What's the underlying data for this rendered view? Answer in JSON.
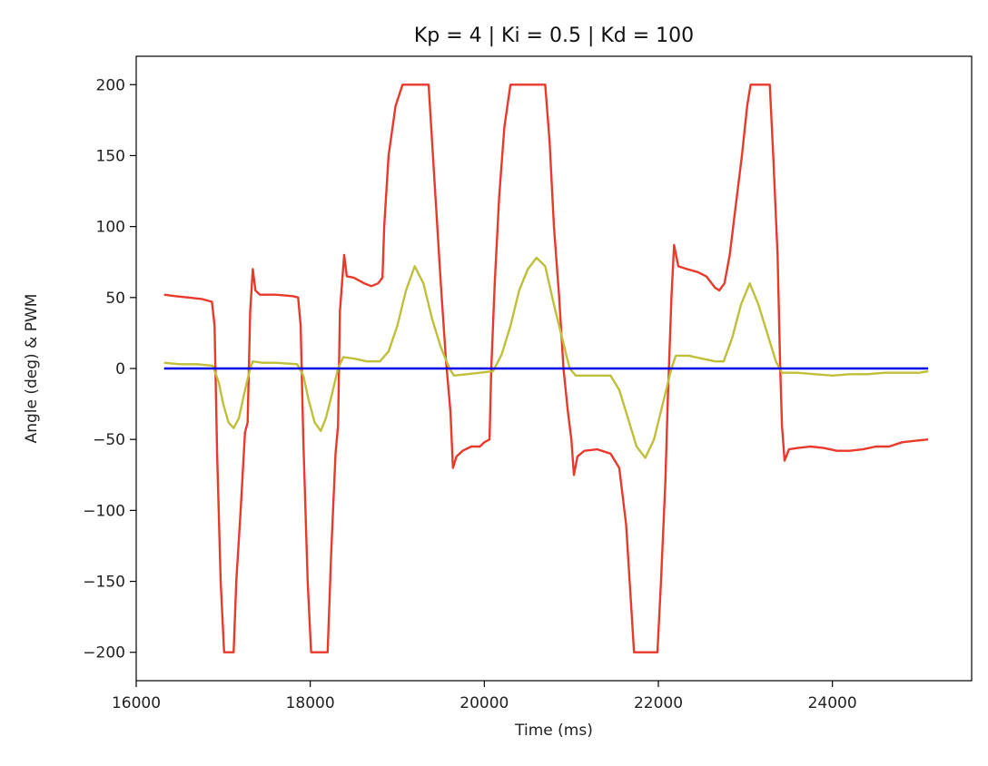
{
  "chart_data": {
    "type": "line",
    "title": "Kp = 4 | Ki = 0.5 | Kd = 100",
    "xlabel": "Time (ms)",
    "ylabel": "Angle (deg) & PWM",
    "xlim": [
      16000,
      25600
    ],
    "ylim": [
      -220,
      220
    ],
    "xticks": [
      16000,
      18000,
      20000,
      22000,
      24000
    ],
    "yticks": [
      -200,
      -150,
      -100,
      -50,
      0,
      50,
      100,
      150,
      200
    ],
    "xtick_labels": [
      "16000",
      "18000",
      "20000",
      "22000",
      "24000"
    ],
    "ytick_labels": [
      "−200",
      "−150",
      "−100",
      "−50",
      "0",
      "50",
      "100",
      "150",
      "200"
    ],
    "grid": false,
    "series": [
      {
        "color": "#e8392b",
        "points": [
          [
            16320,
            52
          ],
          [
            16450,
            51
          ],
          [
            16600,
            50
          ],
          [
            16750,
            49
          ],
          [
            16870,
            47
          ],
          [
            16900,
            30
          ],
          [
            16930,
            -60
          ],
          [
            16970,
            -150
          ],
          [
            17010,
            -200
          ],
          [
            17120,
            -200
          ],
          [
            17150,
            -150
          ],
          [
            17200,
            -100
          ],
          [
            17250,
            -45
          ],
          [
            17280,
            -38
          ],
          [
            17310,
            40
          ],
          [
            17340,
            70
          ],
          [
            17370,
            55
          ],
          [
            17420,
            52
          ],
          [
            17600,
            52
          ],
          [
            17800,
            51
          ],
          [
            17860,
            50
          ],
          [
            17890,
            30
          ],
          [
            17920,
            -50
          ],
          [
            17970,
            -150
          ],
          [
            18010,
            -200
          ],
          [
            18200,
            -200
          ],
          [
            18240,
            -130
          ],
          [
            18290,
            -60
          ],
          [
            18320,
            -40
          ],
          [
            18340,
            40
          ],
          [
            18390,
            80
          ],
          [
            18420,
            65
          ],
          [
            18500,
            64
          ],
          [
            18560,
            62
          ],
          [
            18620,
            60
          ],
          [
            18700,
            58
          ],
          [
            18780,
            60
          ],
          [
            18830,
            64
          ],
          [
            18850,
            100
          ],
          [
            18900,
            150
          ],
          [
            18980,
            185
          ],
          [
            19060,
            200
          ],
          [
            19360,
            200
          ],
          [
            19400,
            160
          ],
          [
            19450,
            110
          ],
          [
            19500,
            60
          ],
          [
            19560,
            5
          ],
          [
            19610,
            -30
          ],
          [
            19640,
            -70
          ],
          [
            19680,
            -62
          ],
          [
            19750,
            -58
          ],
          [
            19850,
            -55
          ],
          [
            19950,
            -55
          ],
          [
            20000,
            -52
          ],
          [
            20060,
            -50
          ],
          [
            20080,
            0
          ],
          [
            20120,
            60
          ],
          [
            20170,
            120
          ],
          [
            20230,
            170
          ],
          [
            20300,
            200
          ],
          [
            20700,
            200
          ],
          [
            20750,
            160
          ],
          [
            20800,
            100
          ],
          [
            20860,
            50
          ],
          [
            20910,
            0
          ],
          [
            20960,
            -30
          ],
          [
            21000,
            -50
          ],
          [
            21030,
            -75
          ],
          [
            21070,
            -62
          ],
          [
            21150,
            -58
          ],
          [
            21300,
            -57
          ],
          [
            21450,
            -60
          ],
          [
            21550,
            -70
          ],
          [
            21630,
            -110
          ],
          [
            21700,
            -180
          ],
          [
            21720,
            -200
          ],
          [
            21990,
            -200
          ],
          [
            22030,
            -150
          ],
          [
            22080,
            -80
          ],
          [
            22110,
            -20
          ],
          [
            22150,
            50
          ],
          [
            22180,
            87
          ],
          [
            22230,
            72
          ],
          [
            22330,
            70
          ],
          [
            22450,
            68
          ],
          [
            22550,
            65
          ],
          [
            22650,
            57
          ],
          [
            22700,
            55
          ],
          [
            22760,
            60
          ],
          [
            22820,
            80
          ],
          [
            22880,
            110
          ],
          [
            22960,
            150
          ],
          [
            23020,
            185
          ],
          [
            23060,
            200
          ],
          [
            23280,
            200
          ],
          [
            23320,
            150
          ],
          [
            23370,
            80
          ],
          [
            23400,
            0
          ],
          [
            23420,
            -40
          ],
          [
            23450,
            -65
          ],
          [
            23500,
            -57
          ],
          [
            23600,
            -56
          ],
          [
            23750,
            -55
          ],
          [
            23900,
            -56
          ],
          [
            24050,
            -58
          ],
          [
            24200,
            -58
          ],
          [
            24350,
            -57
          ],
          [
            24500,
            -55
          ],
          [
            24650,
            -55
          ],
          [
            24800,
            -52
          ],
          [
            24950,
            -51
          ],
          [
            25100,
            -50
          ]
        ]
      },
      {
        "color": "#bfbf3a",
        "points": [
          [
            16320,
            4
          ],
          [
            16500,
            3
          ],
          [
            16700,
            3
          ],
          [
            16880,
            2
          ],
          [
            16950,
            -10
          ],
          [
            17000,
            -25
          ],
          [
            17060,
            -38
          ],
          [
            17120,
            -42
          ],
          [
            17180,
            -35
          ],
          [
            17240,
            -18
          ],
          [
            17310,
            0
          ],
          [
            17340,
            5
          ],
          [
            17450,
            4
          ],
          [
            17600,
            4
          ],
          [
            17850,
            3
          ],
          [
            17920,
            -5
          ],
          [
            17980,
            -22
          ],
          [
            18050,
            -38
          ],
          [
            18120,
            -44
          ],
          [
            18180,
            -35
          ],
          [
            18250,
            -18
          ],
          [
            18320,
            0
          ],
          [
            18380,
            8
          ],
          [
            18500,
            7
          ],
          [
            18650,
            5
          ],
          [
            18800,
            5
          ],
          [
            18900,
            12
          ],
          [
            19000,
            30
          ],
          [
            19100,
            55
          ],
          [
            19200,
            72
          ],
          [
            19300,
            60
          ],
          [
            19400,
            35
          ],
          [
            19500,
            15
          ],
          [
            19600,
            0
          ],
          [
            19650,
            -5
          ],
          [
            19800,
            -4
          ],
          [
            19950,
            -3
          ],
          [
            20100,
            -2
          ],
          [
            20200,
            10
          ],
          [
            20300,
            30
          ],
          [
            20400,
            55
          ],
          [
            20500,
            70
          ],
          [
            20600,
            78
          ],
          [
            20700,
            72
          ],
          [
            20800,
            45
          ],
          [
            20900,
            20
          ],
          [
            20980,
            0
          ],
          [
            21050,
            -5
          ],
          [
            21300,
            -5
          ],
          [
            21450,
            -5
          ],
          [
            21550,
            -15
          ],
          [
            21650,
            -35
          ],
          [
            21750,
            -55
          ],
          [
            21850,
            -63
          ],
          [
            21950,
            -50
          ],
          [
            22050,
            -25
          ],
          [
            22150,
            0
          ],
          [
            22200,
            9
          ],
          [
            22350,
            9
          ],
          [
            22500,
            7
          ],
          [
            22650,
            5
          ],
          [
            22750,
            5
          ],
          [
            22850,
            22
          ],
          [
            22950,
            45
          ],
          [
            23050,
            60
          ],
          [
            23150,
            45
          ],
          [
            23250,
            25
          ],
          [
            23350,
            5
          ],
          [
            23420,
            -3
          ],
          [
            23600,
            -3
          ],
          [
            23800,
            -4
          ],
          [
            24000,
            -5
          ],
          [
            24200,
            -4
          ],
          [
            24400,
            -4
          ],
          [
            24600,
            -3
          ],
          [
            24800,
            -3
          ],
          [
            25000,
            -3
          ],
          [
            25100,
            -2
          ]
        ]
      },
      {
        "color": "#0000e6",
        "points": [
          [
            16320,
            0
          ],
          [
            25100,
            0
          ]
        ]
      }
    ]
  }
}
